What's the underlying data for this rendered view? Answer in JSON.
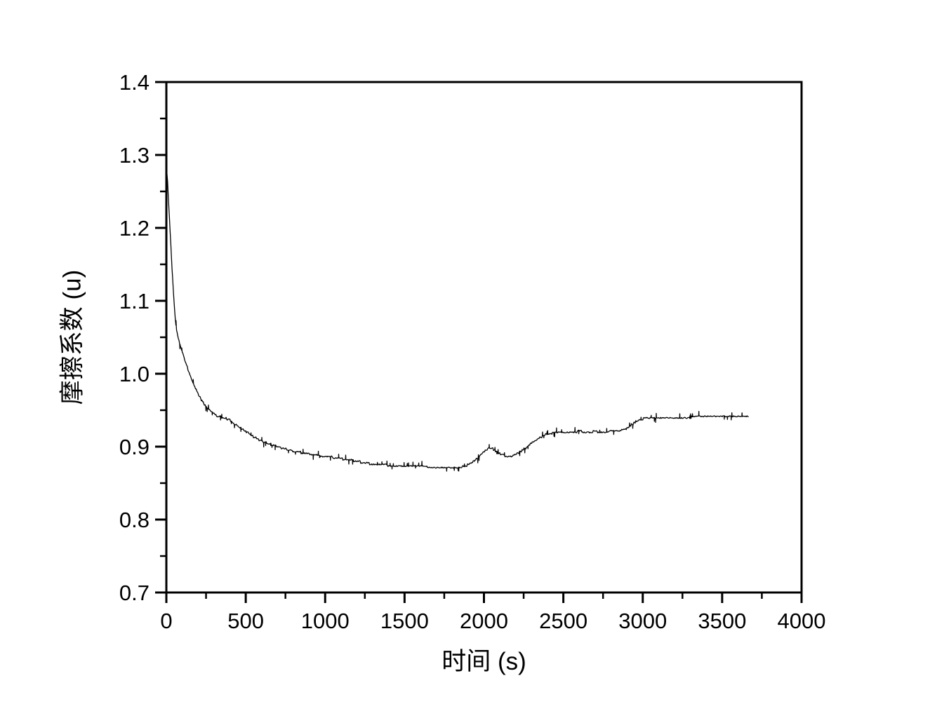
{
  "chart_data": {
    "type": "line",
    "title": "",
    "xlabel": "时间 (s)",
    "ylabel": "摩擦系数 (u)",
    "xlim": [
      0,
      4000
    ],
    "ylim": [
      0.7,
      1.4
    ],
    "grid": false,
    "legend": "none",
    "frame": "full-box",
    "line_color": "#000000",
    "background_color": "#ffffff",
    "x_major_ticks": [
      0,
      500,
      1000,
      1500,
      2000,
      2500,
      3000,
      3500,
      4000
    ],
    "x_tick_labels": [
      "0",
      "500",
      "1000",
      "1500",
      "2000",
      "2500",
      "3000",
      "3500",
      "4000"
    ],
    "x_minor_ticks": [
      250,
      750,
      1250,
      1750,
      2250,
      2750,
      3250,
      3750
    ],
    "y_major_ticks": [
      0.7,
      0.8,
      0.9,
      1.0,
      1.1,
      1.2,
      1.3,
      1.4
    ],
    "y_tick_labels": [
      "0.7",
      "0.8",
      "0.9",
      "1.0",
      "1.1",
      "1.2",
      "1.3",
      "1.4"
    ],
    "y_minor_ticks": [
      0.75,
      0.85,
      0.95,
      1.05,
      1.15,
      1.25,
      1.35
    ],
    "series": [
      {
        "name": "摩擦系数",
        "points": [
          [
            0,
            1.285
          ],
          [
            8,
            1.262
          ],
          [
            16,
            1.228
          ],
          [
            24,
            1.195
          ],
          [
            32,
            1.162
          ],
          [
            40,
            1.128
          ],
          [
            50,
            1.093
          ],
          [
            60,
            1.066
          ],
          [
            72,
            1.051
          ],
          [
            85,
            1.04
          ],
          [
            100,
            1.03
          ],
          [
            115,
            1.02
          ],
          [
            130,
            1.01
          ],
          [
            150,
            0.998
          ],
          [
            170,
            0.987
          ],
          [
            190,
            0.977
          ],
          [
            210,
            0.968
          ],
          [
            230,
            0.961
          ],
          [
            255,
            0.953
          ],
          [
            280,
            0.949
          ],
          [
            305,
            0.944
          ],
          [
            330,
            0.941
          ],
          [
            360,
            0.94
          ],
          [
            395,
            0.937
          ],
          [
            430,
            0.931
          ],
          [
            465,
            0.926
          ],
          [
            500,
            0.921
          ],
          [
            540,
            0.915
          ],
          [
            580,
            0.91
          ],
          [
            620,
            0.906
          ],
          [
            660,
            0.903
          ],
          [
            700,
            0.9
          ],
          [
            750,
            0.897
          ],
          [
            800,
            0.894
          ],
          [
            850,
            0.892
          ],
          [
            900,
            0.89
          ],
          [
            950,
            0.888
          ],
          [
            1000,
            0.887
          ],
          [
            1060,
            0.885
          ],
          [
            1120,
            0.883
          ],
          [
            1180,
            0.881
          ],
          [
            1240,
            0.878
          ],
          [
            1300,
            0.876
          ],
          [
            1360,
            0.875
          ],
          [
            1420,
            0.874
          ],
          [
            1480,
            0.874
          ],
          [
            1540,
            0.874
          ],
          [
            1600,
            0.873
          ],
          [
            1660,
            0.872
          ],
          [
            1720,
            0.871
          ],
          [
            1780,
            0.871
          ],
          [
            1840,
            0.871
          ],
          [
            1890,
            0.874
          ],
          [
            1930,
            0.879
          ],
          [
            1965,
            0.886
          ],
          [
            2000,
            0.893
          ],
          [
            2030,
            0.898
          ],
          [
            2055,
            0.897
          ],
          [
            2080,
            0.893
          ],
          [
            2110,
            0.889
          ],
          [
            2140,
            0.887
          ],
          [
            2170,
            0.887
          ],
          [
            2200,
            0.889
          ],
          [
            2230,
            0.893
          ],
          [
            2260,
            0.898
          ],
          [
            2290,
            0.903
          ],
          [
            2320,
            0.908
          ],
          [
            2350,
            0.912
          ],
          [
            2380,
            0.916
          ],
          [
            2410,
            0.918
          ],
          [
            2450,
            0.919
          ],
          [
            2500,
            0.92
          ],
          [
            2550,
            0.92
          ],
          [
            2600,
            0.921
          ],
          [
            2650,
            0.92
          ],
          [
            2700,
            0.921
          ],
          [
            2750,
            0.92
          ],
          [
            2800,
            0.921
          ],
          [
            2850,
            0.922
          ],
          [
            2890,
            0.924
          ],
          [
            2925,
            0.929
          ],
          [
            2960,
            0.935
          ],
          [
            2995,
            0.938
          ],
          [
            3030,
            0.94
          ],
          [
            3080,
            0.939
          ],
          [
            3130,
            0.94
          ],
          [
            3180,
            0.939
          ],
          [
            3230,
            0.94
          ],
          [
            3280,
            0.94
          ],
          [
            3330,
            0.941
          ],
          [
            3380,
            0.941
          ],
          [
            3430,
            0.941
          ],
          [
            3480,
            0.941
          ],
          [
            3530,
            0.942
          ],
          [
            3580,
            0.942
          ],
          [
            3630,
            0.942
          ],
          [
            3665,
            0.942
          ]
        ],
        "noise": {
          "seed": 11,
          "sample_step_s": 4,
          "quantize_step": 0.0022,
          "jitter_amplitude": 0.0008,
          "spike_probability": 0.1,
          "spike_min": 0.003,
          "spike_max": 0.0065
        }
      }
    ]
  }
}
